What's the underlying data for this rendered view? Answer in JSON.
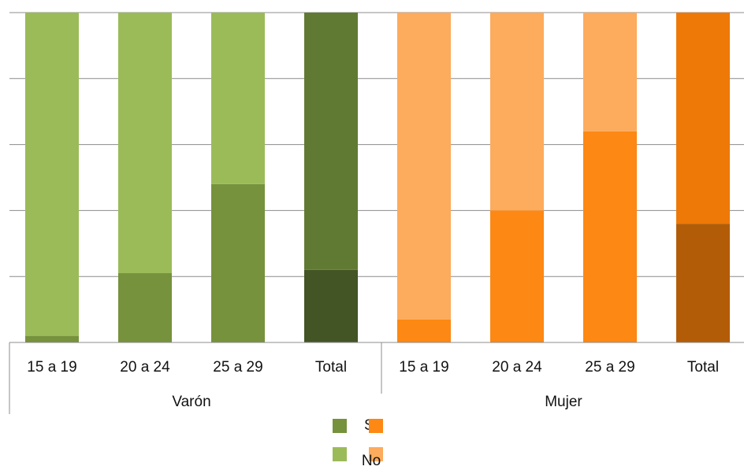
{
  "chart_data": {
    "type": "bar",
    "stacked": true,
    "percent_stacked": true,
    "ylim": [
      0,
      100
    ],
    "grid": true,
    "groups": [
      {
        "name": "Varón",
        "categories": [
          "15 a 19",
          "20 a 24",
          "25 a 29",
          "Total"
        ]
      },
      {
        "name": "Mujer",
        "categories": [
          "15 a 19",
          "20 a 24",
          "25 a 29",
          "Total"
        ]
      }
    ],
    "series": [
      {
        "name": "Sí",
        "values": [
          2,
          21,
          48,
          22,
          7,
          40,
          64,
          36
        ]
      },
      {
        "name": "No",
        "values": [
          98,
          79,
          52,
          78,
          93,
          60,
          36,
          64
        ]
      }
    ],
    "colors": {
      "Varón": {
        "Sí": "#76923c",
        "No": "#9bbb59",
        "Sí_total": "#435425",
        "No_total": "#617a33"
      },
      "Mujer": {
        "Sí": "#fd8813",
        "No": "#fdab5c",
        "Sí_total": "#b35c07",
        "No_total": "#ee7906"
      }
    },
    "legend": {
      "position": "bottom",
      "items": [
        {
          "label": "Sí",
          "colors": [
            "#76923c",
            "#fd8813"
          ]
        },
        {
          "label": "No",
          "colors": [
            "#9bbb59",
            "#fdab5c"
          ]
        }
      ]
    },
    "title": "",
    "xlabel": "",
    "ylabel": ""
  }
}
